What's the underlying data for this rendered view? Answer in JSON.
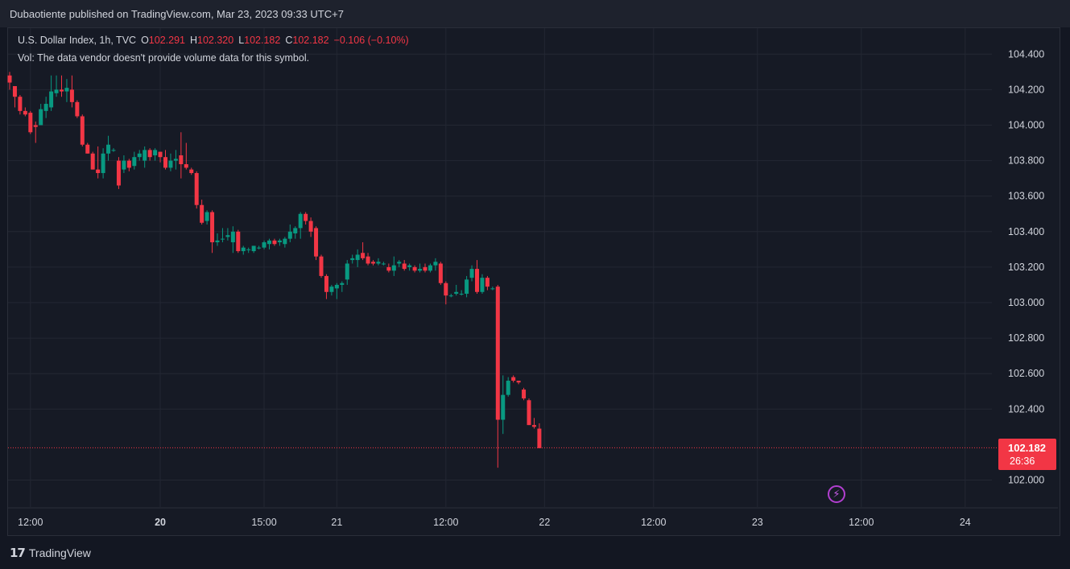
{
  "header": {
    "published": "Dubaotiente published on TradingView.com, Mar 23, 2023 09:33 UTC+7"
  },
  "legend": {
    "symbol": "U.S. Dollar Index, 1h, TVC",
    "o_label": "O",
    "o_value": "102.291",
    "h_label": "H",
    "h_value": "102.320",
    "l_label": "L",
    "l_value": "102.182",
    "c_label": "C",
    "c_value": "102.182",
    "change": "−0.106 (−0.10%)",
    "vol_text": "Vol: The data vendor doesn't provide volume data for this symbol."
  },
  "price_tag": {
    "price": "102.182",
    "countdown": "26:36"
  },
  "brand": {
    "logo_glyph": "𝟭𝟳",
    "name": "TradingView"
  },
  "colors": {
    "background": "#131722",
    "up": "#089981",
    "down": "#f23645",
    "grid": "#232733",
    "text": "#d1d4dc",
    "bolt": "#b23fd0"
  },
  "icons": {
    "alert": "lightning-icon",
    "logo": "tradingview-logo-icon"
  },
  "chart_data": {
    "type": "candlestick",
    "symbol": "U.S. Dollar Index",
    "interval": "1h",
    "ylim": [
      101.98,
      104.48
    ],
    "y_ticks": [
      "104.400",
      "104.200",
      "104.000",
      "103.800",
      "103.600",
      "103.400",
      "103.200",
      "103.000",
      "102.800",
      "102.600",
      "102.400",
      "102.000"
    ],
    "x_ticks": [
      {
        "label": "12:00",
        "bar": 4,
        "bold": false
      },
      {
        "label": "20",
        "bar": 29,
        "bold": true
      },
      {
        "label": "15:00",
        "bar": 49,
        "bold": false
      },
      {
        "label": "21",
        "bar": 63,
        "bold": false
      },
      {
        "label": "12:00",
        "bar": 84,
        "bold": false
      },
      {
        "label": "22",
        "bar": 103,
        "bold": false
      },
      {
        "label": "12:00",
        "bar": 124,
        "bold": false
      },
      {
        "label": "23",
        "bar": 144,
        "bold": false
      },
      {
        "label": "12:00",
        "bar": 164,
        "bold": false
      },
      {
        "label": "24",
        "bar": 184,
        "bold": false
      }
    ],
    "last_price": 102.182,
    "candles": [
      [
        104.28,
        104.3,
        104.2,
        104.24
      ],
      [
        104.22,
        104.22,
        104.1,
        104.16
      ],
      [
        104.16,
        104.17,
        104.06,
        104.08
      ],
      [
        104.08,
        104.1,
        104.05,
        104.06
      ],
      [
        104.07,
        104.08,
        103.95,
        103.96
      ],
      [
        104.0,
        104.02,
        103.9,
        103.99
      ],
      [
        104.0,
        104.12,
        104.0,
        104.09
      ],
      [
        104.08,
        104.16,
        104.04,
        104.12
      ],
      [
        104.1,
        104.28,
        104.08,
        104.19
      ],
      [
        104.18,
        104.28,
        104.16,
        104.2
      ],
      [
        104.2,
        104.28,
        104.16,
        104.19
      ],
      [
        104.19,
        104.26,
        104.13,
        104.21
      ],
      [
        104.2,
        104.28,
        104.1,
        104.13
      ],
      [
        104.13,
        104.14,
        104.04,
        104.05
      ],
      [
        104.05,
        104.06,
        103.88,
        103.89
      ],
      [
        103.89,
        103.9,
        103.84,
        103.84
      ],
      [
        103.84,
        103.85,
        103.75,
        103.75
      ],
      [
        103.75,
        103.88,
        103.7,
        103.73
      ],
      [
        103.73,
        103.87,
        103.7,
        103.84
      ],
      [
        103.84,
        103.94,
        103.8,
        103.89
      ],
      [
        103.86,
        103.87,
        103.85,
        103.86
      ],
      [
        103.8,
        103.82,
        103.64,
        103.66
      ],
      [
        103.75,
        103.83,
        103.73,
        103.8
      ],
      [
        103.8,
        103.81,
        103.74,
        103.76
      ],
      [
        103.77,
        103.85,
        103.75,
        103.82
      ],
      [
        103.82,
        103.86,
        103.8,
        103.84
      ],
      [
        103.8,
        103.88,
        103.76,
        103.86
      ],
      [
        103.86,
        103.87,
        103.8,
        103.82
      ],
      [
        103.83,
        103.87,
        103.8,
        103.86
      ],
      [
        103.85,
        103.85,
        103.79,
        103.82
      ],
      [
        103.82,
        103.86,
        103.75,
        103.76
      ],
      [
        103.76,
        103.84,
        103.74,
        103.8
      ],
      [
        103.8,
        103.86,
        103.75,
        103.81
      ],
      [
        103.83,
        103.96,
        103.7,
        103.78
      ],
      [
        103.78,
        103.9,
        103.75,
        103.76
      ],
      [
        103.75,
        103.76,
        103.72,
        103.73
      ],
      [
        103.73,
        103.74,
        103.53,
        103.55
      ],
      [
        103.55,
        103.58,
        103.44,
        103.45
      ],
      [
        103.46,
        103.52,
        103.44,
        103.51
      ],
      [
        103.51,
        103.52,
        103.28,
        103.34
      ],
      [
        103.34,
        103.39,
        103.32,
        103.35
      ],
      [
        103.36,
        103.42,
        103.34,
        103.36
      ],
      [
        103.37,
        103.42,
        103.35,
        103.38
      ],
      [
        103.34,
        103.43,
        103.28,
        103.4
      ],
      [
        103.4,
        103.41,
        103.28,
        103.29
      ],
      [
        103.29,
        103.32,
        103.27,
        103.31
      ],
      [
        103.3,
        103.31,
        103.28,
        103.3
      ],
      [
        103.29,
        103.32,
        103.28,
        103.32
      ],
      [
        103.31,
        103.32,
        103.3,
        103.31
      ],
      [
        103.31,
        103.35,
        103.3,
        103.34
      ],
      [
        103.33,
        103.36,
        103.3,
        103.35
      ],
      [
        103.35,
        103.36,
        103.32,
        103.33
      ],
      [
        103.34,
        103.36,
        103.32,
        103.35
      ],
      [
        103.33,
        103.37,
        103.31,
        103.36
      ],
      [
        103.36,
        103.44,
        103.34,
        103.4
      ],
      [
        103.39,
        103.43,
        103.36,
        103.42
      ],
      [
        103.42,
        103.51,
        103.36,
        103.5
      ],
      [
        103.5,
        103.51,
        103.44,
        103.46
      ],
      [
        103.46,
        103.48,
        103.37,
        103.4
      ],
      [
        103.42,
        103.43,
        103.24,
        103.26
      ],
      [
        103.26,
        103.27,
        103.14,
        103.15
      ],
      [
        103.15,
        103.16,
        103.02,
        103.06
      ],
      [
        103.06,
        103.1,
        103.04,
        103.09
      ],
      [
        103.08,
        103.11,
        103.02,
        103.1
      ],
      [
        103.1,
        103.12,
        103.06,
        103.11
      ],
      [
        103.13,
        103.24,
        103.1,
        103.22
      ],
      [
        103.24,
        103.27,
        103.22,
        103.25
      ],
      [
        103.24,
        103.3,
        103.2,
        103.27
      ],
      [
        103.28,
        103.34,
        103.24,
        103.25
      ],
      [
        103.26,
        103.28,
        103.21,
        103.22
      ],
      [
        103.23,
        103.24,
        103.21,
        103.22
      ],
      [
        103.22,
        103.25,
        103.21,
        103.23
      ],
      [
        103.22,
        103.23,
        103.21,
        103.22
      ],
      [
        103.2,
        103.22,
        103.17,
        103.18
      ],
      [
        103.18,
        103.26,
        103.15,
        103.21
      ],
      [
        103.22,
        103.24,
        103.2,
        103.23
      ],
      [
        103.22,
        103.24,
        103.18,
        103.19
      ],
      [
        103.2,
        103.22,
        103.18,
        103.21
      ],
      [
        103.2,
        103.21,
        103.17,
        103.18
      ],
      [
        103.18,
        103.22,
        103.17,
        103.19
      ],
      [
        103.2,
        103.22,
        103.17,
        103.18
      ],
      [
        103.18,
        103.22,
        103.17,
        103.21
      ],
      [
        103.21,
        103.25,
        103.18,
        103.23
      ],
      [
        103.22,
        103.23,
        103.1,
        103.11
      ],
      [
        103.11,
        103.12,
        102.99,
        103.04
      ],
      [
        103.04,
        103.05,
        103.03,
        103.04
      ],
      [
        103.05,
        103.1,
        103.04,
        103.06
      ],
      [
        103.05,
        103.07,
        103.04,
        103.05
      ],
      [
        103.05,
        103.15,
        103.03,
        103.13
      ],
      [
        103.14,
        103.21,
        103.12,
        103.19
      ],
      [
        103.19,
        103.24,
        103.05,
        103.06
      ],
      [
        103.06,
        103.16,
        103.05,
        103.14
      ],
      [
        103.14,
        103.15,
        103.07,
        103.09
      ],
      [
        103.08,
        103.09,
        103.07,
        103.08
      ],
      [
        103.09,
        103.1,
        102.07,
        102.34
      ],
      [
        102.34,
        102.59,
        102.26,
        102.48
      ],
      [
        102.48,
        102.58,
        102.47,
        102.56
      ],
      [
        102.58,
        102.59,
        102.55,
        102.56
      ],
      [
        102.56,
        102.56,
        102.54,
        102.55
      ],
      [
        102.51,
        102.52,
        102.45,
        102.46
      ],
      [
        102.45,
        102.46,
        102.31,
        102.31
      ],
      [
        102.31,
        102.35,
        102.29,
        102.3
      ],
      [
        102.29,
        102.32,
        102.18,
        102.18
      ]
    ]
  }
}
